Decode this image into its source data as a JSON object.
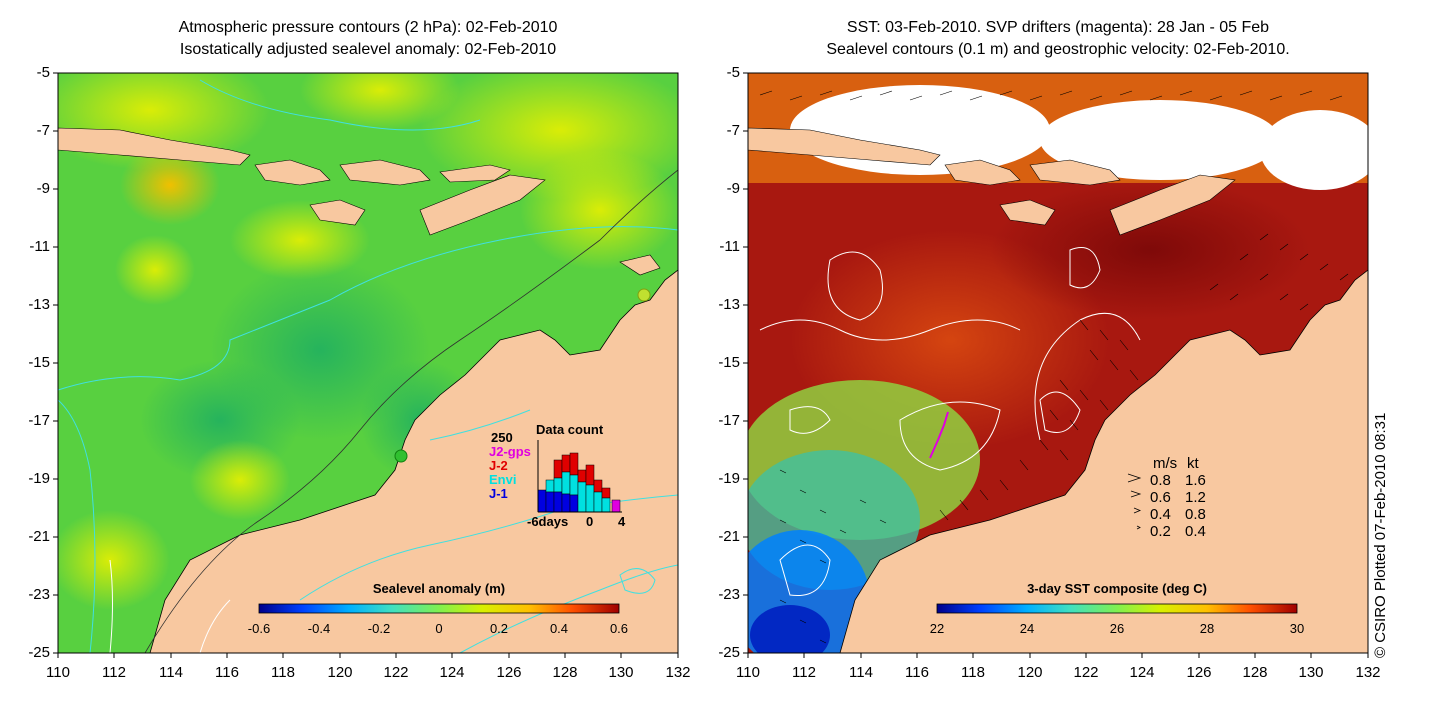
{
  "left_panel": {
    "title_line1": "Atmospheric pressure contours (2 hPa): 02-Feb-2010",
    "title_line2": "Isostatically adjusted sealevel anomaly: 02-Feb-2010",
    "colorbar": {
      "label": "Sealevel anomaly (m)",
      "ticks": [
        "-0.6",
        "-0.4",
        "-0.2",
        "0",
        "0.2",
        "0.4",
        "0.6"
      ],
      "colors": [
        "#00008b",
        "#0050ff",
        "#00c8ff",
        "#40e0a0",
        "#a0f050",
        "#e8f000",
        "#ffc000",
        "#ff6000",
        "#c00000",
        "#800000"
      ]
    },
    "data_count": {
      "title": "Data count",
      "ymax_label": "250",
      "legend": [
        {
          "label": "J2-gps",
          "color": "#e000e0"
        },
        {
          "label": "J-2",
          "color": "#e00000"
        },
        {
          "label": "Envi",
          "color": "#00e0e0"
        },
        {
          "label": "J-1",
          "color": "#0000e0"
        }
      ],
      "xticks": [
        "-6days",
        "0",
        "4"
      ]
    }
  },
  "right_panel": {
    "title_line1": "SST: 03-Feb-2010. SVP drifters (magenta): 28 Jan - 05 Feb",
    "title_line2": "Sealevel contours (0.1 m) and geostrophic velocity: 02-Feb-2010.",
    "colorbar": {
      "label": "3-day SST composite (deg C)",
      "ticks": [
        "22",
        "24",
        "26",
        "28",
        "30"
      ],
      "colors": [
        "#00008b",
        "#0050ff",
        "#00c8ff",
        "#40e0a0",
        "#a0f050",
        "#e8f000",
        "#ffc000",
        "#ff6000",
        "#c00000",
        "#800000"
      ]
    },
    "velocity_legend": {
      "header_ms": "m/s",
      "header_kt": "kt",
      "rows": [
        {
          "ms": "0.8",
          "kt": "1.6"
        },
        {
          "ms": "0.6",
          "kt": "1.2"
        },
        {
          "ms": "0.4",
          "kt": "0.8"
        },
        {
          "ms": "0.2",
          "kt": "0.4"
        }
      ]
    }
  },
  "axes": {
    "y_ticks": [
      "-5",
      "-7",
      "-9",
      "-11",
      "-13",
      "-15",
      "-17",
      "-19",
      "-21",
      "-23",
      "-25"
    ],
    "x_ticks": [
      "110",
      "112",
      "114",
      "116",
      "118",
      "120",
      "122",
      "124",
      "126",
      "128",
      "130",
      "132"
    ]
  },
  "credit": "© CSIRO Plotted 07-Feb-2010 08:31",
  "colors": {
    "land": "#f8c8a0",
    "ocean_green": "#40d040",
    "sst_dark_red": "#a01010",
    "contour_cyan": "#40e0e0"
  }
}
